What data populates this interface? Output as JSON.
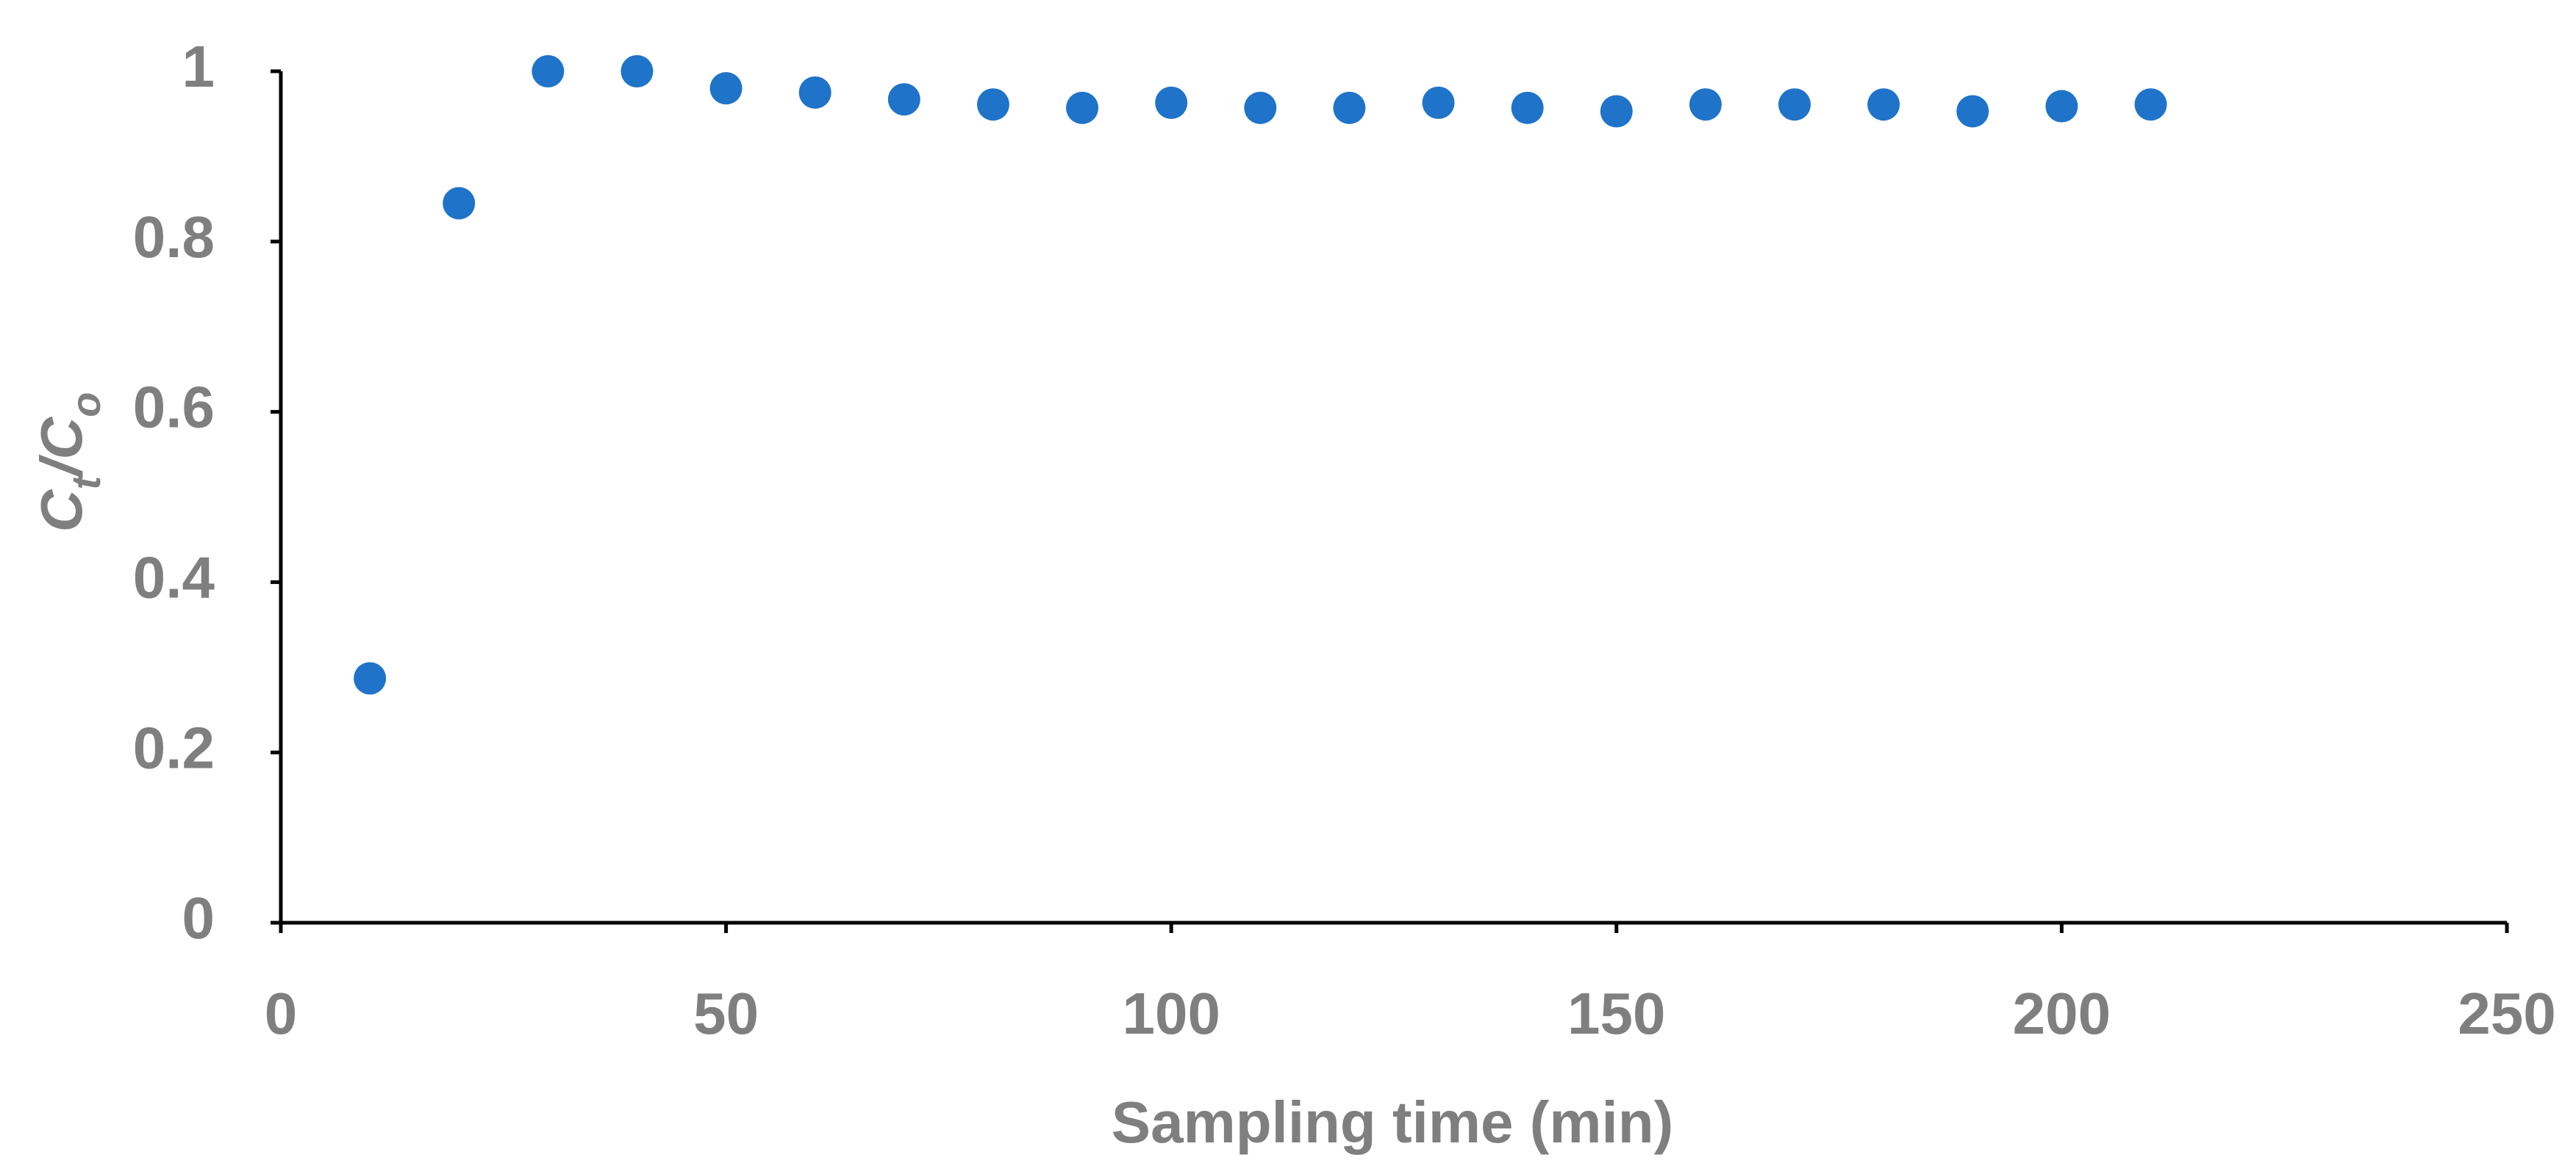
{
  "chart_data": {
    "type": "scatter",
    "xlabel": "Sampling time (min)",
    "ylabel": [
      "C",
      "t",
      "/C",
      "o"
    ],
    "x": [
      10,
      20,
      30,
      40,
      50,
      60,
      70,
      80,
      90,
      100,
      110,
      120,
      130,
      140,
      150,
      160,
      170,
      180,
      190,
      200,
      210
    ],
    "values": [
      0.287,
      0.845,
      1.0,
      1.0,
      0.98,
      0.975,
      0.967,
      0.961,
      0.957,
      0.963,
      0.957,
      0.957,
      0.963,
      0.957,
      0.953,
      0.961,
      0.961,
      0.961,
      0.953,
      0.959,
      0.961
    ],
    "color": "#1f73c9",
    "xlim": [
      0,
      250
    ],
    "xticks": [
      0,
      50,
      100,
      150,
      200,
      250
    ],
    "ylim": [
      0,
      1
    ],
    "yticks": [
      0,
      0.2,
      0.4,
      0.6,
      0.8,
      1
    ],
    "grid": false
  }
}
